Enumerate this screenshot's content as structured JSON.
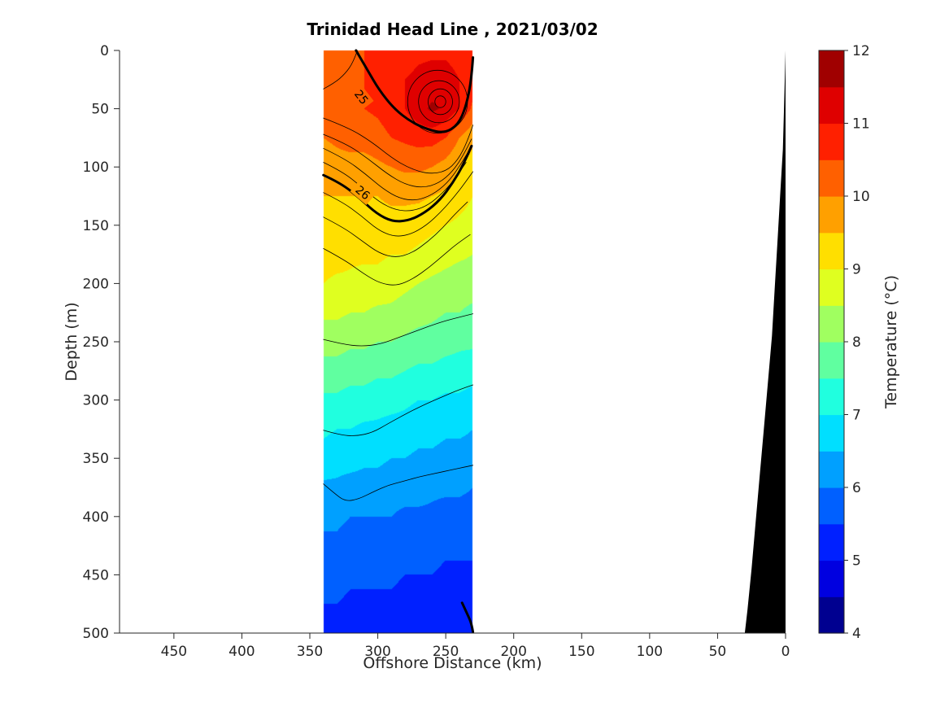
{
  "chart_data": {
    "type": "heatmap",
    "title": "Trinidad Head Line , 2021/03/02",
    "xlabel": "Offshore Distance (km)",
    "ylabel": "Depth (m)",
    "colorbar_label": "Temperature (°C)",
    "x_axis": {
      "min": 0,
      "max": 490,
      "reversed": true,
      "ticks": [
        450,
        400,
        350,
        300,
        250,
        200,
        150,
        100,
        50,
        0
      ]
    },
    "y_axis": {
      "min": 0,
      "max": 500,
      "inverted": true,
      "ticks": [
        0,
        50,
        100,
        150,
        200,
        250,
        300,
        350,
        400,
        450,
        500
      ]
    },
    "colorbar": {
      "min": 4,
      "max": 12,
      "step": 0.5,
      "ticks": [
        4,
        5,
        6,
        7,
        8,
        9,
        10,
        11,
        12
      ],
      "colors": [
        "#000090",
        "#0000E0",
        "#0020FF",
        "#0060FF",
        "#00A0FF",
        "#00DFFF",
        "#20FFDF",
        "#60FFA0",
        "#A0FF60",
        "#DFFF20",
        "#FFDF00",
        "#FFA000",
        "#FF6000",
        "#FF2000",
        "#DF0000",
        "#A00000"
      ]
    },
    "colors": {
      "axis": "#262626",
      "contour": "#000000",
      "coast": "#000000",
      "background": "#ffffff"
    },
    "section": {
      "x": [
        340,
        330,
        320,
        310,
        300,
        290,
        280,
        270,
        260,
        250,
        240,
        230
      ],
      "depths": [
        0,
        25,
        50,
        75,
        100,
        125,
        150,
        175,
        200,
        225,
        250,
        275,
        300,
        325,
        350,
        375,
        400,
        425,
        450,
        475,
        500
      ],
      "temperature": [
        [
          10.3,
          10.4,
          10.4,
          10.5,
          10.6,
          10.7,
          10.8,
          10.9,
          10.9,
          10.9,
          10.8,
          10.6
        ],
        [
          10.3,
          10.4,
          10.5,
          10.5,
          10.6,
          10.8,
          11.0,
          11.1,
          11.2,
          11.2,
          11.0,
          10.7
        ],
        [
          10.2,
          10.3,
          10.4,
          10.5,
          10.6,
          10.8,
          11.0,
          11.3,
          11.6,
          11.4,
          11.0,
          10.4
        ],
        [
          10.0,
          10.1,
          10.2,
          10.2,
          10.3,
          10.5,
          10.6,
          10.7,
          10.7,
          10.5,
          10.0,
          9.6
        ],
        [
          9.7,
          9.8,
          9.8,
          9.8,
          9.9,
          10.0,
          10.1,
          10.1,
          10.0,
          9.8,
          9.5,
          9.3
        ],
        [
          9.5,
          9.5,
          9.5,
          9.5,
          9.5,
          9.6,
          9.6,
          9.6,
          9.5,
          9.4,
          9.2,
          9.0
        ],
        [
          9.3,
          9.3,
          9.3,
          9.3,
          9.3,
          9.3,
          9.3,
          9.2,
          9.1,
          9.0,
          8.9,
          8.8
        ],
        [
          9.2,
          9.2,
          9.1,
          9.1,
          9.1,
          9.0,
          9.0,
          8.9,
          8.8,
          8.7,
          8.6,
          8.5
        ],
        [
          9.0,
          8.9,
          8.9,
          8.8,
          8.8,
          8.7,
          8.6,
          8.5,
          8.4,
          8.3,
          8.2,
          8.2
        ],
        [
          8.6,
          8.6,
          8.5,
          8.5,
          8.4,
          8.4,
          8.3,
          8.2,
          8.1,
          8.0,
          8.0,
          7.9
        ],
        [
          8.2,
          8.2,
          8.1,
          8.1,
          8.0,
          8.0,
          7.9,
          7.8,
          7.8,
          7.7,
          7.6,
          7.6
        ],
        [
          7.8,
          7.8,
          7.7,
          7.7,
          7.6,
          7.6,
          7.5,
          7.4,
          7.4,
          7.3,
          7.3,
          7.2
        ],
        [
          7.4,
          7.4,
          7.3,
          7.3,
          7.2,
          7.2,
          7.1,
          7.0,
          7.0,
          6.9,
          6.9,
          6.8
        ],
        [
          7.1,
          7.0,
          7.0,
          6.9,
          6.9,
          6.8,
          6.8,
          6.7,
          6.7,
          6.6,
          6.6,
          6.5
        ],
        [
          6.8,
          6.7,
          6.7,
          6.6,
          6.6,
          6.5,
          6.5,
          6.4,
          6.4,
          6.3,
          6.3,
          6.3
        ],
        [
          6.4,
          6.4,
          6.3,
          6.3,
          6.3,
          6.2,
          6.2,
          6.2,
          6.1,
          6.1,
          6.1,
          6.0
        ],
        [
          6.1,
          6.1,
          6.0,
          6.0,
          6.0,
          6.0,
          5.9,
          5.9,
          5.9,
          5.8,
          5.8,
          5.8
        ],
        [
          5.9,
          5.9,
          5.8,
          5.8,
          5.8,
          5.8,
          5.7,
          5.7,
          5.7,
          5.6,
          5.6,
          5.6
        ],
        [
          5.7,
          5.7,
          5.6,
          5.6,
          5.6,
          5.6,
          5.5,
          5.5,
          5.5,
          5.4,
          5.4,
          5.4
        ],
        [
          5.5,
          5.5,
          5.4,
          5.4,
          5.4,
          5.4,
          5.3,
          5.3,
          5.3,
          5.3,
          5.2,
          5.2
        ],
        [
          5.4,
          5.3,
          5.3,
          5.3,
          5.3,
          5.2,
          5.2,
          5.2,
          5.2,
          5.1,
          5.1,
          5.1
        ]
      ]
    },
    "density_contours": [
      {
        "lw": "thin",
        "pts": [
          [
            315,
            0
          ],
          [
            318,
            10
          ],
          [
            324,
            20
          ],
          [
            332,
            28
          ],
          [
            340,
            33
          ]
        ]
      },
      {
        "lw": "thick",
        "label": "25",
        "label_at": [
          312,
          40
        ],
        "label_angle": 52,
        "label_bg": "#FF6000",
        "pts": [
          [
            316,
            0
          ],
          [
            308,
            16
          ],
          [
            299,
            34
          ],
          [
            288,
            50
          ],
          [
            276,
            61
          ],
          [
            263,
            68
          ],
          [
            251,
            71
          ],
          [
            241,
            64
          ],
          [
            235,
            48
          ],
          [
            231,
            24
          ],
          [
            230,
            6
          ]
        ]
      },
      {
        "lw": "thin",
        "ellipse": [
          256,
          44,
          22,
          27
        ]
      },
      {
        "lw": "thin",
        "ellipse": [
          255,
          44,
          15,
          18
        ]
      },
      {
        "lw": "thin",
        "ellipse": [
          254,
          44,
          9,
          11
        ]
      },
      {
        "lw": "thin",
        "ellipse": [
          254,
          44,
          4,
          5
        ]
      },
      {
        "lw": "thin",
        "pts": [
          [
            340,
            58
          ],
          [
            322,
            66
          ],
          [
            305,
            78
          ],
          [
            290,
            92
          ],
          [
            277,
            101
          ],
          [
            263,
            106
          ],
          [
            250,
            104
          ],
          [
            241,
            94
          ],
          [
            234,
            78
          ],
          [
            230,
            64
          ]
        ]
      },
      {
        "lw": "thin",
        "pts": [
          [
            340,
            72
          ],
          [
            323,
            80
          ],
          [
            307,
            93
          ],
          [
            293,
            106
          ],
          [
            280,
            115
          ],
          [
            267,
            118
          ],
          [
            255,
            114
          ],
          [
            245,
            104
          ],
          [
            237,
            90
          ],
          [
            231,
            76
          ]
        ]
      },
      {
        "lw": "thin",
        "pts": [
          [
            340,
            84
          ],
          [
            324,
            93
          ],
          [
            309,
            106
          ],
          [
            296,
            119
          ],
          [
            284,
            127
          ],
          [
            272,
            129
          ],
          [
            260,
            124
          ],
          [
            249,
            114
          ],
          [
            240,
            100
          ],
          [
            233,
            86
          ]
        ]
      },
      {
        "lw": "thin",
        "pts": [
          [
            340,
            96
          ],
          [
            326,
            104
          ],
          [
            312,
            117
          ],
          [
            299,
            130
          ],
          [
            287,
            137
          ],
          [
            275,
            138
          ],
          [
            263,
            133
          ],
          [
            252,
            122
          ],
          [
            243,
            110
          ],
          [
            235,
            96
          ]
        ]
      },
      {
        "lw": "thick",
        "label": "26",
        "label_at": [
          311,
          122
        ],
        "label_angle": 40,
        "label_bg": "#FFA000",
        "pts": [
          [
            340,
            107
          ],
          [
            327,
            114
          ],
          [
            313,
            127
          ],
          [
            301,
            140
          ],
          [
            289,
            147
          ],
          [
            277,
            146
          ],
          [
            265,
            139
          ],
          [
            254,
            128
          ],
          [
            245,
            114
          ],
          [
            237,
            98
          ],
          [
            231,
            82
          ]
        ]
      },
      {
        "lw": "thin",
        "pts": [
          [
            340,
            122
          ],
          [
            326,
            130
          ],
          [
            312,
            142
          ],
          [
            300,
            154
          ],
          [
            288,
            160
          ],
          [
            276,
            158
          ],
          [
            264,
            150
          ],
          [
            253,
            138
          ],
          [
            244,
            126
          ],
          [
            236,
            114
          ],
          [
            230,
            104
          ]
        ]
      },
      {
        "lw": "thin",
        "pts": [
          [
            340,
            143
          ],
          [
            325,
            152
          ],
          [
            311,
            164
          ],
          [
            299,
            174
          ],
          [
            287,
            178
          ],
          [
            275,
            174
          ],
          [
            263,
            164
          ],
          [
            252,
            152
          ],
          [
            243,
            140
          ],
          [
            234,
            130
          ]
        ]
      },
      {
        "lw": "thin",
        "pts": [
          [
            340,
            170
          ],
          [
            324,
            180
          ],
          [
            310,
            192
          ],
          [
            298,
            200
          ],
          [
            286,
            202
          ],
          [
            274,
            196
          ],
          [
            262,
            186
          ],
          [
            252,
            176
          ],
          [
            242,
            166
          ],
          [
            232,
            158
          ]
        ]
      },
      {
        "lw": "thin",
        "pts": [
          [
            340,
            248
          ],
          [
            326,
            252
          ],
          [
            312,
            254
          ],
          [
            298,
            252
          ],
          [
            284,
            246
          ],
          [
            270,
            240
          ],
          [
            256,
            234
          ],
          [
            244,
            230
          ],
          [
            230,
            226
          ]
        ]
      },
      {
        "lw": "thin",
        "pts": [
          [
            340,
            326
          ],
          [
            328,
            330
          ],
          [
            316,
            331
          ],
          [
            304,
            328
          ],
          [
            292,
            320
          ],
          [
            278,
            311
          ],
          [
            264,
            303
          ],
          [
            252,
            297
          ],
          [
            240,
            291
          ],
          [
            230,
            287
          ]
        ]
      },
      {
        "lw": "thin",
        "pts": [
          [
            340,
            372
          ],
          [
            332,
            380
          ],
          [
            324,
            387
          ],
          [
            314,
            385
          ],
          [
            302,
            378
          ],
          [
            292,
            373
          ],
          [
            282,
            370
          ],
          [
            270,
            366
          ],
          [
            258,
            363
          ],
          [
            246,
            360
          ],
          [
            234,
            357
          ],
          [
            230,
            356
          ]
        ]
      },
      {
        "lw": "thick",
        "pts": [
          [
            238,
            474
          ],
          [
            234,
            484
          ],
          [
            231,
            492
          ],
          [
            230,
            499
          ]
        ]
      }
    ],
    "coast_polygon": [
      [
        0,
        0
      ],
      [
        1,
        45
      ],
      [
        2,
        85
      ],
      [
        4,
        125
      ],
      [
        6,
        165
      ],
      [
        8,
        205
      ],
      [
        10,
        245
      ],
      [
        13,
        285
      ],
      [
        16,
        325
      ],
      [
        19,
        365
      ],
      [
        22,
        405
      ],
      [
        25,
        445
      ],
      [
        28,
        480
      ],
      [
        30,
        500
      ],
      [
        0,
        500
      ]
    ]
  }
}
